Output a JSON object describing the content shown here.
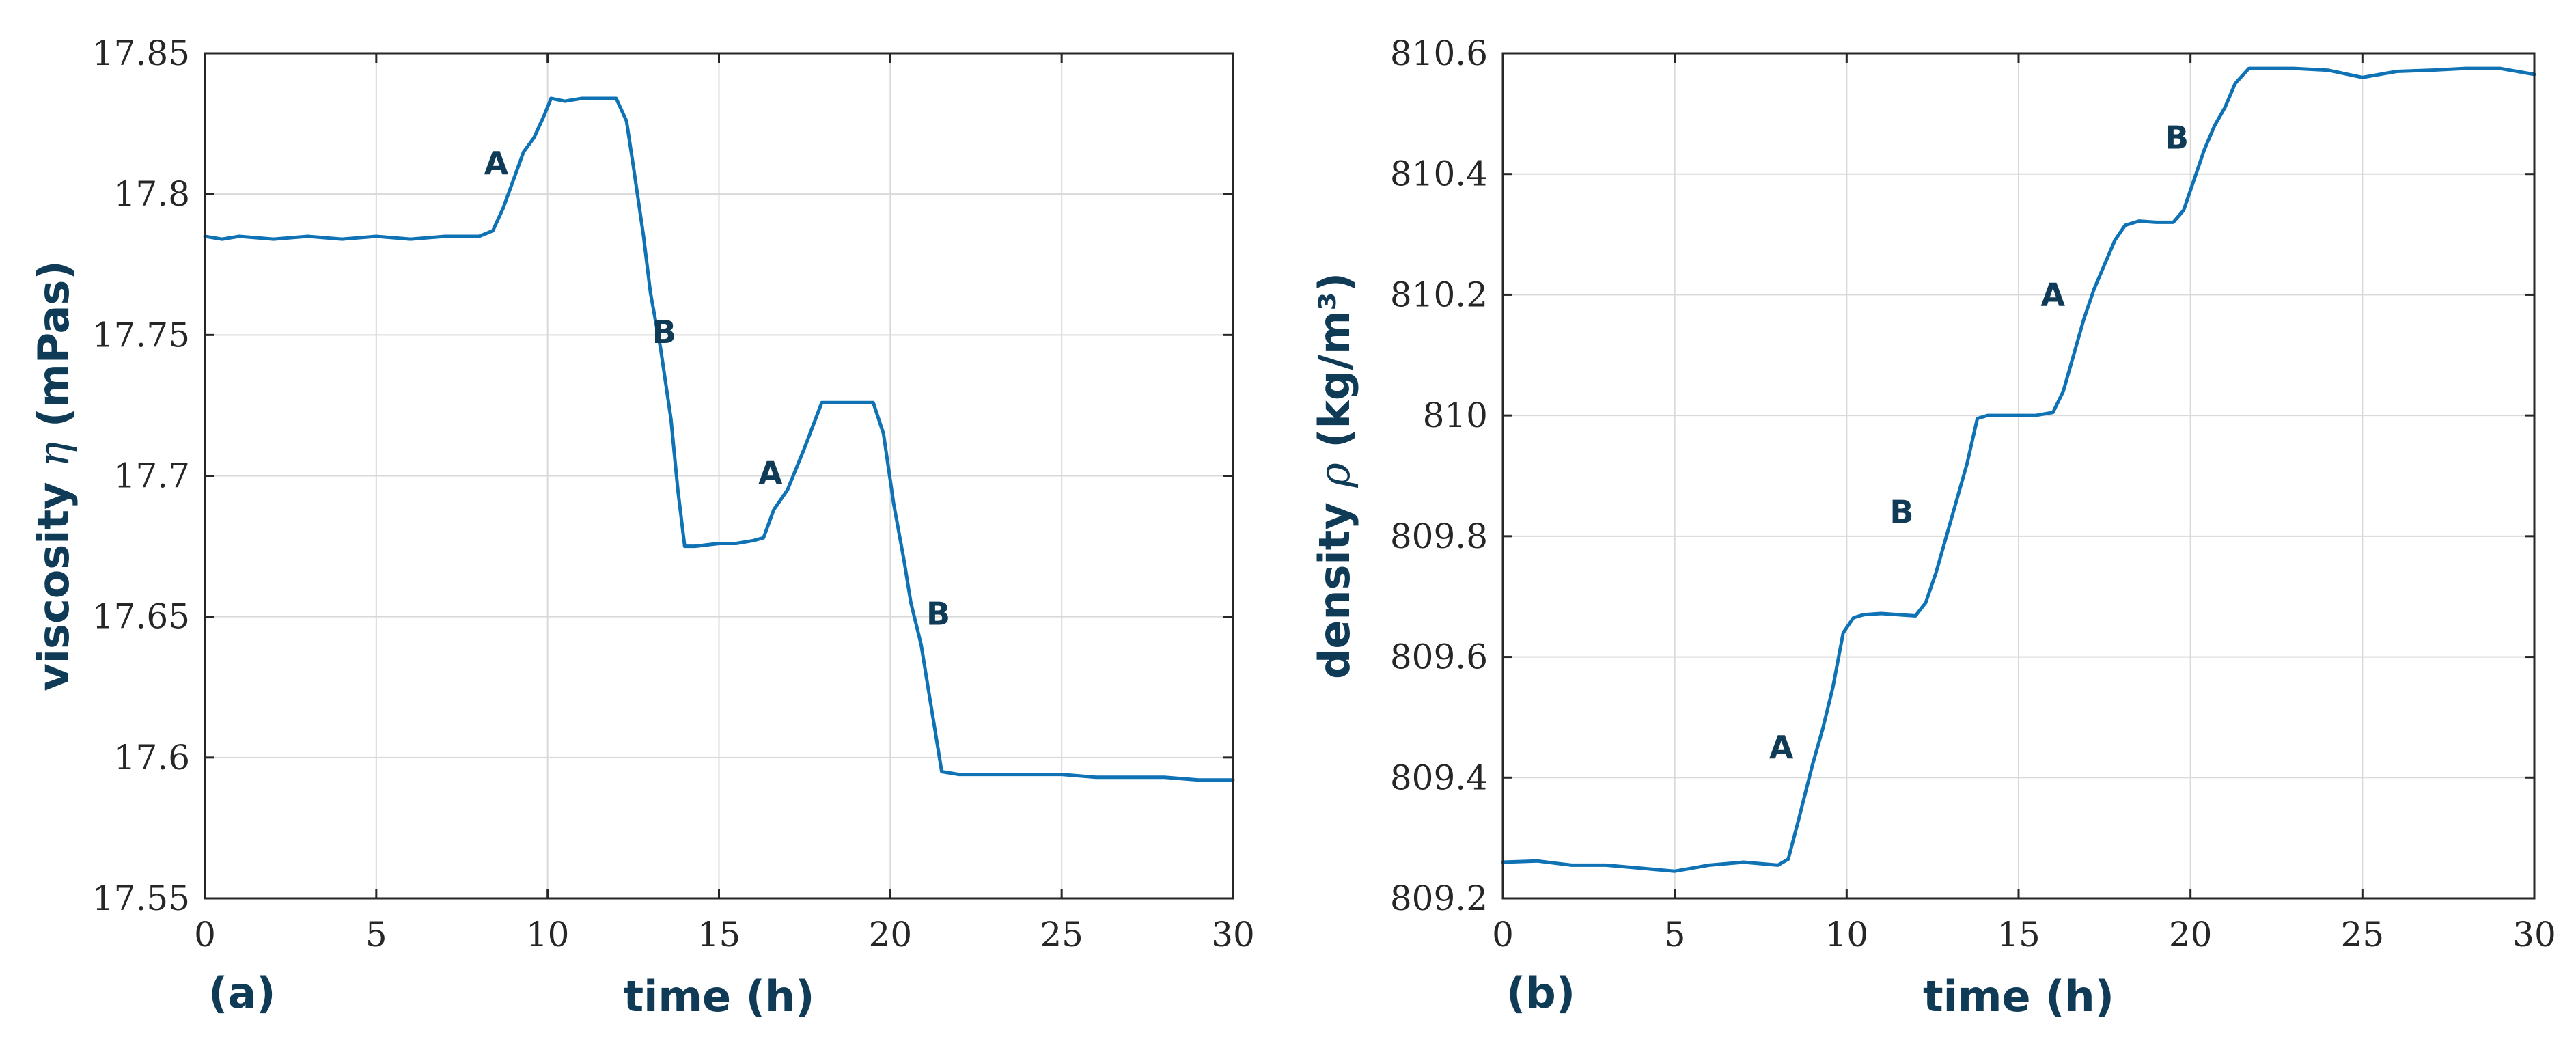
{
  "colors": {
    "series": "#0e72b5",
    "label": "#0f3b57",
    "axis": "#262626",
    "grid": "#d9d9d9"
  },
  "chart_data": [
    {
      "type": "line",
      "panel_label": "(a)",
      "xlabel": "time (h)",
      "ylabel_prefix": "viscosity ",
      "ylabel_symbol": "η",
      "ylabel_suffix": " (mPas)",
      "xlim": [
        0,
        30
      ],
      "ylim": [
        17.55,
        17.85
      ],
      "xticks": [
        0,
        5,
        10,
        15,
        20,
        25,
        30
      ],
      "xtick_labels": [
        "0",
        "5",
        "10",
        "15",
        "20",
        "25",
        "30"
      ],
      "yticks": [
        17.55,
        17.6,
        17.65,
        17.7,
        17.75,
        17.8,
        17.85
      ],
      "ytick_labels": [
        "17.55",
        "17.6",
        "17.65",
        "17.7",
        "17.75",
        "17.8",
        "17.85"
      ],
      "grid": true,
      "series": [
        {
          "x": [
            0,
            0.5,
            1,
            2,
            3,
            4,
            5,
            6,
            7,
            8,
            8.4,
            8.7,
            9.0,
            9.3,
            9.6,
            9.9,
            10.1,
            10.5,
            11,
            11.5,
            12.0,
            12.3,
            12.5,
            12.8,
            13.0,
            13.3,
            13.6,
            13.8,
            14.0,
            14.3,
            15,
            15.5,
            16.0,
            16.3,
            16.6,
            17.0,
            17.5,
            18.0,
            18.3,
            19.0,
            19.5,
            19.8,
            20.1,
            20.4,
            20.6,
            20.9,
            21.1,
            21.3,
            21.5,
            22,
            23,
            24,
            25,
            26,
            27,
            28,
            29,
            30
          ],
          "y": [
            17.785,
            17.784,
            17.785,
            17.784,
            17.785,
            17.784,
            17.785,
            17.784,
            17.785,
            17.785,
            17.787,
            17.795,
            17.805,
            17.815,
            17.82,
            17.828,
            17.834,
            17.833,
            17.834,
            17.834,
            17.834,
            17.826,
            17.81,
            17.785,
            17.765,
            17.745,
            17.72,
            17.695,
            17.675,
            17.675,
            17.676,
            17.676,
            17.677,
            17.678,
            17.688,
            17.695,
            17.71,
            17.726,
            17.726,
            17.726,
            17.726,
            17.715,
            17.69,
            17.67,
            17.655,
            17.64,
            17.625,
            17.61,
            17.595,
            17.594,
            17.594,
            17.594,
            17.594,
            17.593,
            17.593,
            17.593,
            17.592,
            17.592
          ]
        }
      ],
      "annotations": [
        {
          "text": "A",
          "x": 8.5,
          "y": 17.811
        },
        {
          "text": "B",
          "x": 13.4,
          "y": 17.751
        },
        {
          "text": "A",
          "x": 16.5,
          "y": 17.701
        },
        {
          "text": "B",
          "x": 21.4,
          "y": 17.651
        }
      ]
    },
    {
      "type": "line",
      "panel_label": "(b)",
      "xlabel": "time (h)",
      "ylabel_prefix": "density ",
      "ylabel_symbol": "ρ",
      "ylabel_suffix": " (kg/m³)",
      "xlim": [
        0,
        30
      ],
      "ylim": [
        809.2,
        810.6
      ],
      "xticks": [
        0,
        5,
        10,
        15,
        20,
        25,
        30
      ],
      "xtick_labels": [
        "0",
        "5",
        "10",
        "15",
        "20",
        "25",
        "30"
      ],
      "yticks": [
        809.2,
        809.4,
        809.6,
        809.8,
        810,
        810.2,
        810.4,
        810.6
      ],
      "ytick_labels": [
        "809.2",
        "809.4",
        "809.6",
        "809.8",
        "810",
        "810.2",
        "810.4",
        "810.6"
      ],
      "grid": true,
      "series": [
        {
          "x": [
            0,
            1,
            2,
            3,
            4,
            5,
            6,
            7,
            8,
            8.3,
            8.6,
            9.0,
            9.3,
            9.6,
            9.9,
            10.2,
            10.5,
            11,
            11.5,
            12.0,
            12.3,
            12.6,
            12.9,
            13.2,
            13.5,
            13.8,
            14.1,
            14.5,
            15,
            15.5,
            16.0,
            16.3,
            16.6,
            16.9,
            17.2,
            17.5,
            17.8,
            18.1,
            18.5,
            19,
            19.5,
            19.8,
            20.1,
            20.4,
            20.7,
            21.0,
            21.3,
            21.7,
            22,
            23,
            24,
            25,
            26,
            27,
            28,
            29,
            30
          ],
          "y": [
            809.26,
            809.262,
            809.255,
            809.255,
            809.25,
            809.245,
            809.255,
            809.26,
            809.255,
            809.265,
            809.33,
            809.42,
            809.48,
            809.55,
            809.64,
            809.665,
            809.67,
            809.672,
            809.67,
            809.668,
            809.69,
            809.74,
            809.8,
            809.86,
            809.92,
            809.995,
            810.0,
            810.0,
            810.0,
            810.0,
            810.005,
            810.04,
            810.1,
            810.16,
            810.21,
            810.25,
            810.29,
            810.315,
            810.322,
            810.32,
            810.32,
            810.34,
            810.39,
            810.44,
            810.48,
            810.51,
            810.55,
            810.575,
            810.575,
            810.575,
            810.572,
            810.56,
            810.57,
            810.572,
            810.575,
            810.575,
            810.565
          ]
        }
      ],
      "annotations": [
        {
          "text": "A",
          "x": 8.1,
          "y": 809.45
        },
        {
          "text": "B",
          "x": 11.6,
          "y": 809.84
        },
        {
          "text": "A",
          "x": 16.0,
          "y": 810.2
        },
        {
          "text": "B",
          "x": 19.6,
          "y": 810.46
        }
      ]
    }
  ]
}
